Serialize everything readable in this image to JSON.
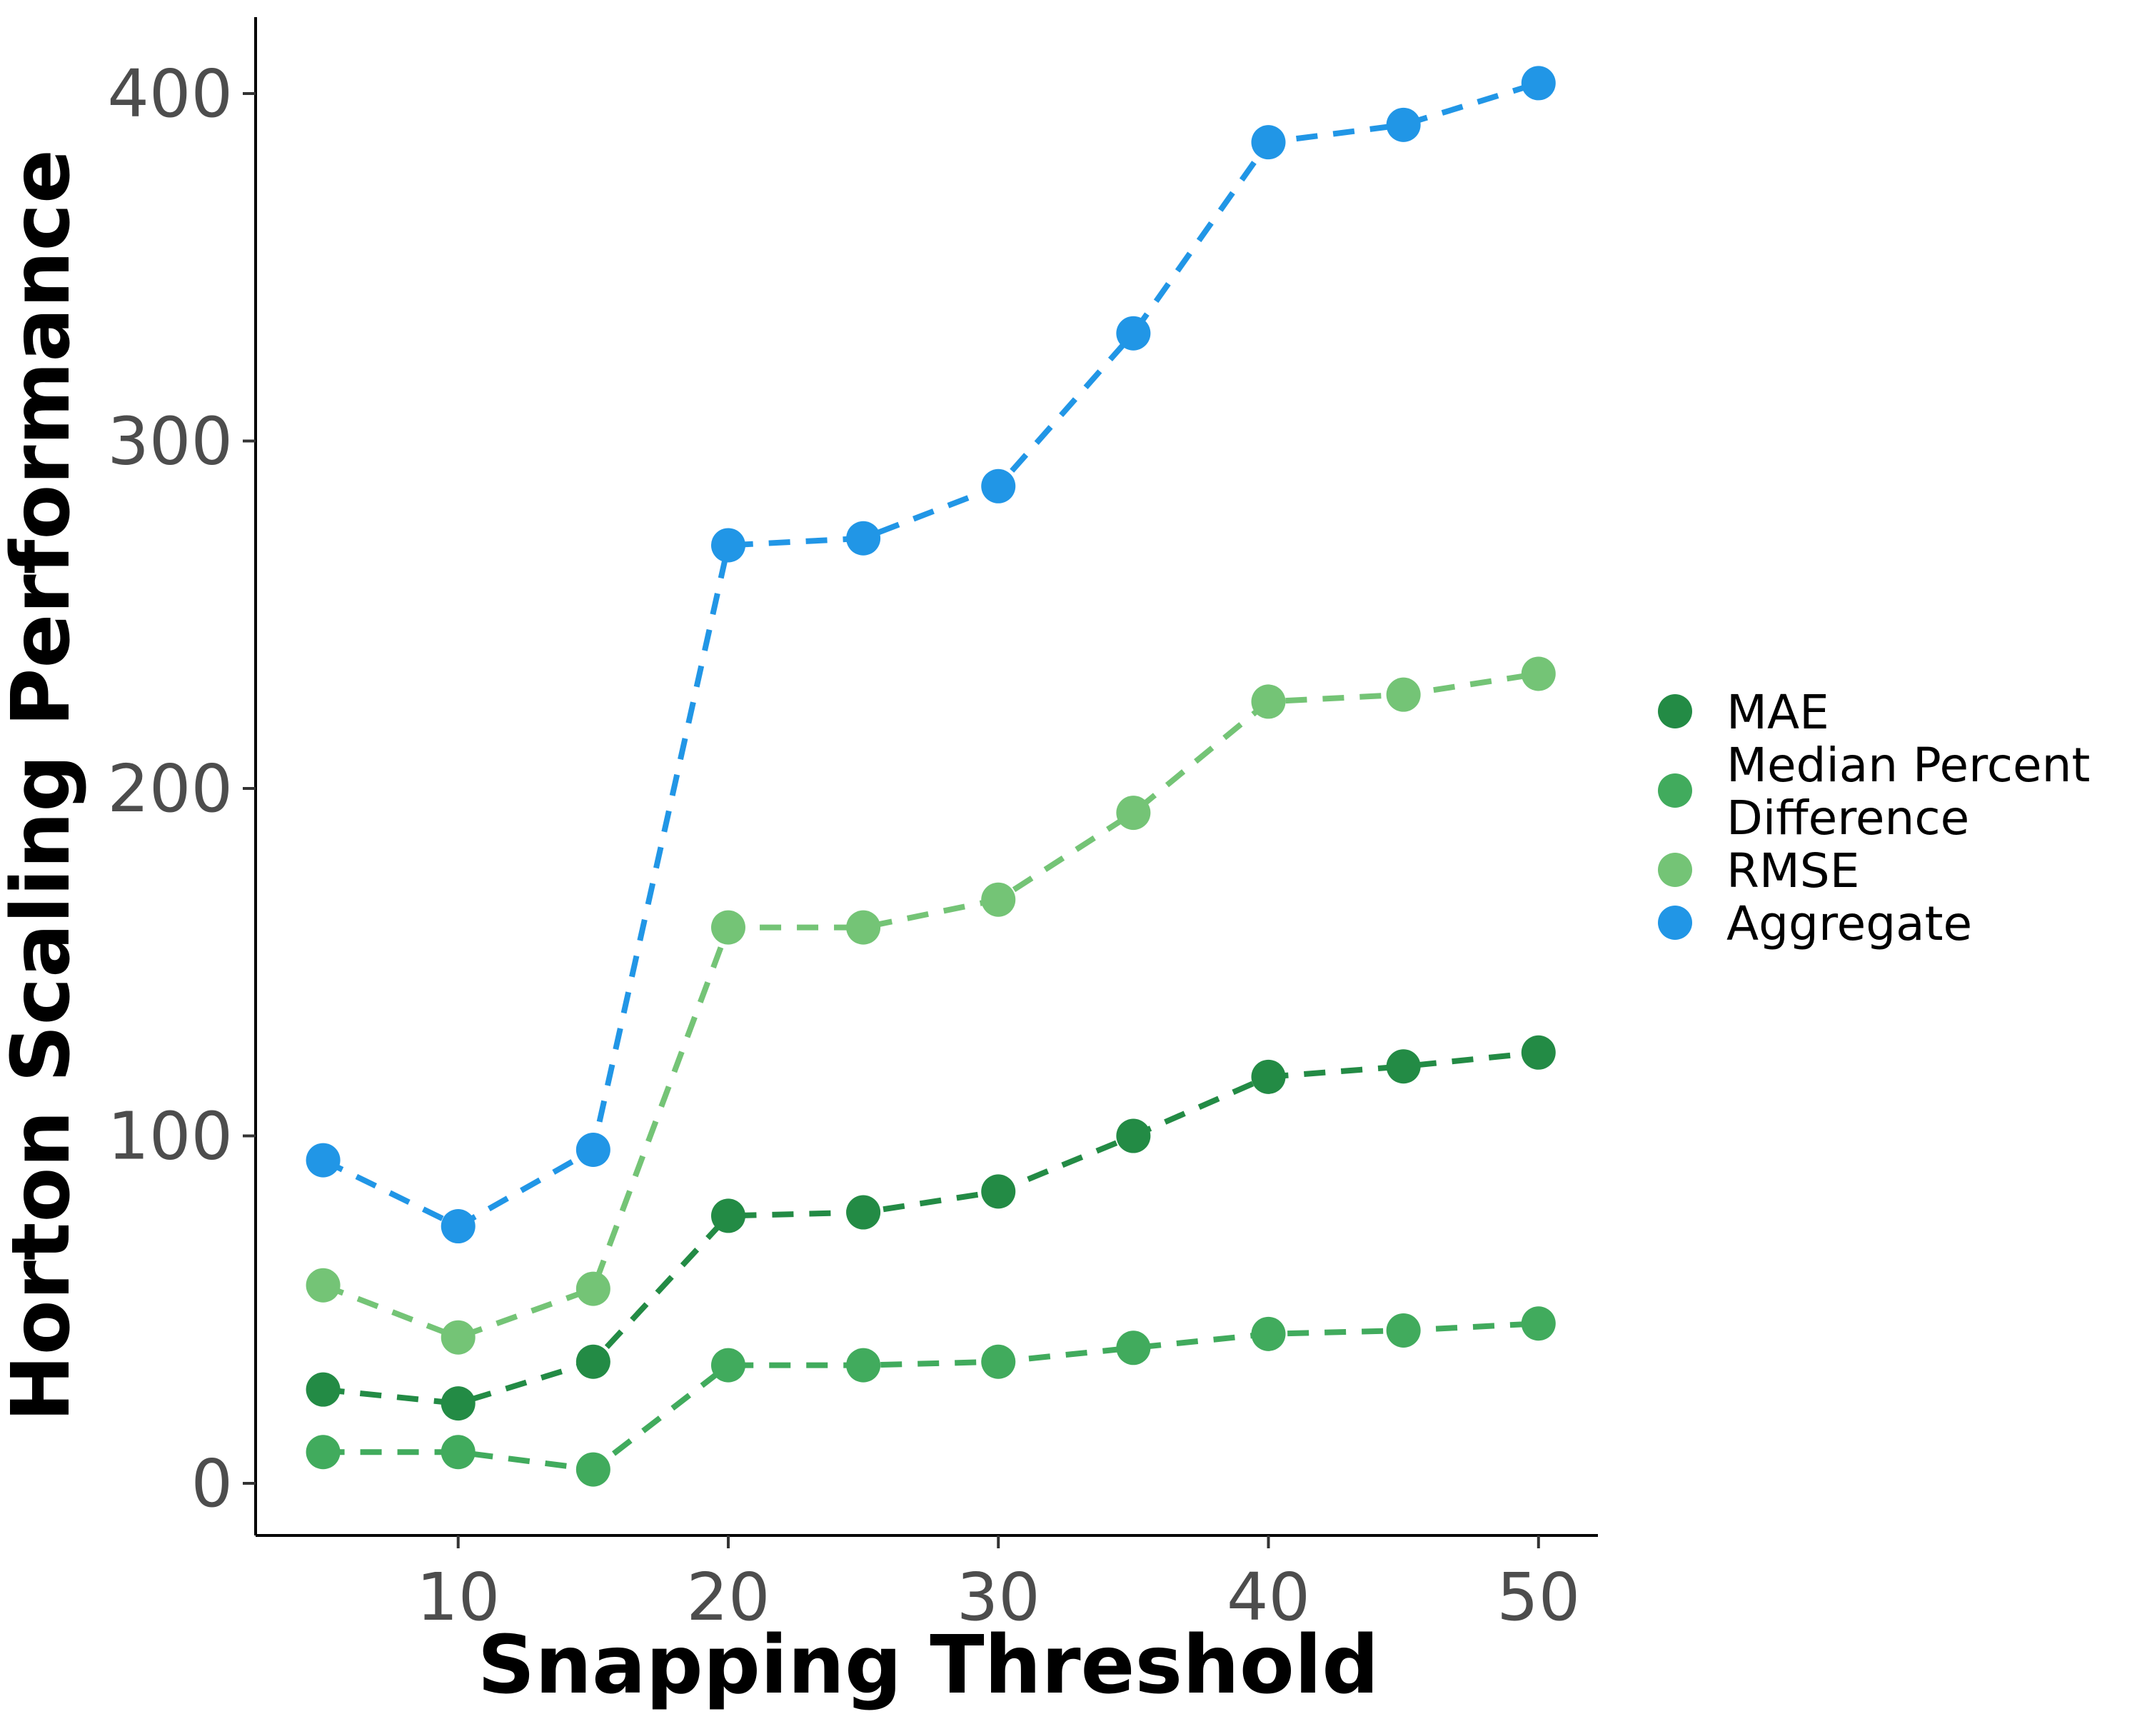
{
  "chart_data": {
    "type": "line",
    "title": "",
    "xlabel": "Snapping Threshold",
    "ylabel": "Horton Scaling Performance",
    "x": [
      5,
      10,
      15,
      20,
      25,
      30,
      35,
      40,
      45,
      50
    ],
    "xticks": [
      10,
      20,
      30,
      40,
      50
    ],
    "yticks": [
      0,
      100,
      200,
      300,
      400
    ],
    "xlim": [
      2.5,
      52.2
    ],
    "ylim": [
      -15,
      422
    ],
    "grid": false,
    "legend_position": "right",
    "line_style": "dashed",
    "series": [
      {
        "name": "MAE",
        "color": "#238b45",
        "values": [
          27,
          23,
          35,
          77,
          78,
          84,
          100,
          117,
          120,
          124
        ]
      },
      {
        "name": "Median Percent Difference",
        "legend_lines": [
          "Median Percent",
          "Difference"
        ],
        "color": "#41ab5d",
        "values": [
          9,
          9,
          4,
          34,
          34,
          35,
          39,
          43,
          44,
          46
        ]
      },
      {
        "name": "RMSE",
        "color": "#74c476",
        "values": [
          57,
          42,
          56,
          160,
          160,
          168,
          193,
          225,
          227,
          233
        ]
      },
      {
        "name": "Aggregate",
        "color": "#2196e6",
        "values": [
          93,
          74,
          96,
          270,
          272,
          287,
          331,
          386,
          391,
          403
        ]
      }
    ]
  }
}
